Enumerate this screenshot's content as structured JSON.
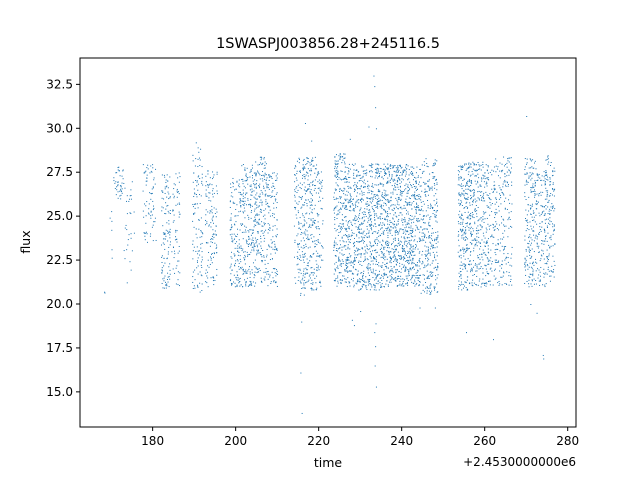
{
  "chart_data": {
    "type": "scatter",
    "title": "1SWASPJ003856.28+245116.5",
    "xlabel": "time",
    "ylabel": "flux",
    "x_offset_label": "+2.4530000000e6",
    "xlim": [
      162.5,
      282
    ],
    "ylim": [
      13.0,
      34.0
    ],
    "xticks": [
      180,
      200,
      220,
      240,
      260,
      280
    ],
    "xtick_labels": [
      "180",
      "200",
      "220",
      "240",
      "260",
      "280"
    ],
    "yticks": [
      15.0,
      17.5,
      20.0,
      22.5,
      25.0,
      27.5,
      30.0,
      32.5
    ],
    "ytick_labels": [
      "15.0",
      "17.5",
      "20.0",
      "22.5",
      "25.0",
      "27.5",
      "30.0",
      "32.5"
    ],
    "grid": false,
    "marker_color": "#1f77b4",
    "clusters": [
      {
        "x": [
          168.2,
          168.5
        ],
        "y": [
          20.5,
          21.0
        ],
        "n": 1
      },
      {
        "x": [
          169.5,
          170.3
        ],
        "y": [
          22.0,
          25.3
        ],
        "n": 6
      },
      {
        "x": [
          170.5,
          173.0
        ],
        "y": [
          26.0,
          27.9
        ],
        "n": 40
      },
      {
        "x": [
          173.0,
          175.5
        ],
        "y": [
          21.2,
          27.0
        ],
        "n": 30
      },
      {
        "x": [
          177.5,
          180.8
        ],
        "y": [
          23.5,
          28.0
        ],
        "n": 70
      },
      {
        "x": [
          182.0,
          184.2
        ],
        "y": [
          20.9,
          27.5
        ],
        "n": 110
      },
      {
        "x": [
          184.5,
          186.5
        ],
        "y": [
          21.0,
          27.5
        ],
        "n": 60
      },
      {
        "x": [
          189.5,
          192.0
        ],
        "y": [
          20.7,
          29.2
        ],
        "n": 110
      },
      {
        "x": [
          192.6,
          195.5
        ],
        "y": [
          21.0,
          27.8
        ],
        "n": 120
      },
      {
        "x": [
          198.5,
          201.2
        ],
        "y": [
          21.0,
          27.2
        ],
        "n": 140
      },
      {
        "x": [
          201.2,
          204.5
        ],
        "y": [
          21.0,
          28.0
        ],
        "n": 200
      },
      {
        "x": [
          204.5,
          207.5
        ],
        "y": [
          21.2,
          28.4
        ],
        "n": 200
      },
      {
        "x": [
          207.5,
          210.0
        ],
        "y": [
          21.0,
          27.5
        ],
        "n": 120
      },
      {
        "x": [
          214.0,
          216.5
        ],
        "y": [
          20.5,
          28.5
        ],
        "n": 150
      },
      {
        "x": [
          216.5,
          219.5
        ],
        "y": [
          20.8,
          28.4
        ],
        "n": 200
      },
      {
        "x": [
          219.5,
          221.0
        ],
        "y": [
          21.0,
          27.8
        ],
        "n": 60
      },
      {
        "x": [
          223.5,
          226.5
        ],
        "y": [
          21.0,
          28.6
        ],
        "n": 240
      },
      {
        "x": [
          226.5,
          229.5
        ],
        "y": [
          21.0,
          28.0
        ],
        "n": 240
      },
      {
        "x": [
          229.5,
          232.5
        ],
        "y": [
          20.8,
          28.0
        ],
        "n": 250
      },
      {
        "x": [
          232.5,
          235.5
        ],
        "y": [
          20.8,
          28.0
        ],
        "n": 260
      },
      {
        "x": [
          235.5,
          238.5
        ],
        "y": [
          21.0,
          28.0
        ],
        "n": 280
      },
      {
        "x": [
          238.5,
          241.5
        ],
        "y": [
          21.0,
          28.0
        ],
        "n": 280
      },
      {
        "x": [
          241.5,
          244.5
        ],
        "y": [
          21.0,
          27.9
        ],
        "n": 260
      },
      {
        "x": [
          244.5,
          248.7
        ],
        "y": [
          20.5,
          28.3
        ],
        "n": 280
      },
      {
        "x": [
          253.5,
          256.5
        ],
        "y": [
          20.8,
          28.1
        ],
        "n": 260
      },
      {
        "x": [
          256.5,
          259.5
        ],
        "y": [
          21.0,
          28.1
        ],
        "n": 200
      },
      {
        "x": [
          259.5,
          262.5
        ],
        "y": [
          21.0,
          28.0
        ],
        "n": 160
      },
      {
        "x": [
          262.5,
          266.5
        ],
        "y": [
          21.0,
          28.4
        ],
        "n": 170
      },
      {
        "x": [
          269.5,
          272.5
        ],
        "y": [
          21.0,
          28.4
        ],
        "n": 190
      },
      {
        "x": [
          272.5,
          274.5
        ],
        "y": [
          21.0,
          28.0
        ],
        "n": 100
      },
      {
        "x": [
          274.5,
          276.8
        ],
        "y": [
          21.0,
          28.6
        ],
        "n": 140
      }
    ],
    "outliers": [
      {
        "x": 168.3,
        "y": 20.7
      },
      {
        "x": 190.4,
        "y": 29.2
      },
      {
        "x": 215.6,
        "y": 16.1
      },
      {
        "x": 215.8,
        "y": 19.0
      },
      {
        "x": 215.9,
        "y": 13.8
      },
      {
        "x": 216.7,
        "y": 30.3
      },
      {
        "x": 218.2,
        "y": 29.3
      },
      {
        "x": 227.5,
        "y": 29.4
      },
      {
        "x": 228.0,
        "y": 19.1
      },
      {
        "x": 228.5,
        "y": 18.8
      },
      {
        "x": 230.0,
        "y": 19.6
      },
      {
        "x": 232.0,
        "y": 30.1
      },
      {
        "x": 233.2,
        "y": 33.0
      },
      {
        "x": 233.4,
        "y": 32.4
      },
      {
        "x": 233.6,
        "y": 31.2
      },
      {
        "x": 233.8,
        "y": 30.0
      },
      {
        "x": 233.6,
        "y": 17.6
      },
      {
        "x": 233.5,
        "y": 16.5
      },
      {
        "x": 233.4,
        "y": 18.4
      },
      {
        "x": 233.7,
        "y": 18.9
      },
      {
        "x": 233.8,
        "y": 15.3
      },
      {
        "x": 244.3,
        "y": 19.8
      },
      {
        "x": 248.0,
        "y": 19.8
      },
      {
        "x": 255.5,
        "y": 18.4
      },
      {
        "x": 262.0,
        "y": 18.0
      },
      {
        "x": 270.0,
        "y": 30.7
      },
      {
        "x": 271.0,
        "y": 20.0
      },
      {
        "x": 272.5,
        "y": 19.5
      },
      {
        "x": 274.0,
        "y": 17.1
      },
      {
        "x": 274.1,
        "y": 16.9
      }
    ]
  }
}
